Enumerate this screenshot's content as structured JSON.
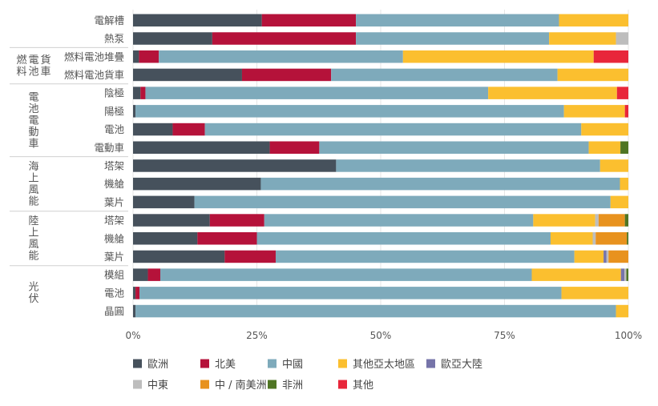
{
  "chart_data": {
    "type": "bar",
    "orientation": "horizontal",
    "stacked": true,
    "percent": true,
    "xlim": [
      0,
      100
    ],
    "xticks": [
      "0%",
      "25%",
      "50%",
      "75%",
      "100%"
    ],
    "grid": true,
    "legend_position": "bottom",
    "series": [
      {
        "name": "歐洲",
        "color": "#46515c"
      },
      {
        "name": "北美",
        "color": "#b5123a"
      },
      {
        "name": "中國",
        "color": "#7eaabb"
      },
      {
        "name": "其他亞太地區",
        "color": "#fbbf2f"
      },
      {
        "name": "歐亞大陸",
        "color": "#7674a9"
      },
      {
        "name": "中東",
        "color": "#bdbdbd"
      },
      {
        "name": "中 / 南美洲",
        "color": "#e8921e"
      },
      {
        "name": "非洲",
        "color": "#4f7523"
      },
      {
        "name": "其他",
        "color": "#e8263a"
      }
    ],
    "groups": [
      {
        "label": "",
        "start": 0,
        "end": 1
      },
      {
        "label": "燃料電池貨車",
        "start": 2,
        "end": 3
      },
      {
        "label": "電池電動車",
        "start": 4,
        "end": 7
      },
      {
        "label": "海上風能",
        "start": 8,
        "end": 10
      },
      {
        "label": "陸上風能",
        "start": 11,
        "end": 13
      },
      {
        "label": "光伏",
        "start": 14,
        "end": 16
      }
    ],
    "categories": [
      "電解槽",
      "熱泵",
      "燃料電池堆疊",
      "燃料電池貨車",
      "陰極",
      "陽極",
      "電池",
      "電動車",
      "塔架",
      "機艙",
      "葉片",
      "塔架",
      "機艙",
      "葉片",
      "模組",
      "電池",
      "晶圓"
    ],
    "rows": [
      [
        26,
        19,
        41,
        14,
        0,
        0,
        0,
        0,
        0
      ],
      [
        16,
        29,
        39,
        13.5,
        0,
        2.5,
        0,
        0,
        0
      ],
      [
        1.2,
        4,
        49.3,
        38.5,
        0,
        0,
        0,
        0,
        7
      ],
      [
        22,
        18,
        45.7,
        14.3,
        0,
        0,
        0,
        0,
        0
      ],
      [
        1.5,
        1,
        69.2,
        26,
        0,
        0,
        0,
        0,
        2.3
      ],
      [
        0.5,
        0,
        86.5,
        12.3,
        0,
        0,
        0,
        0,
        0.7
      ],
      [
        8,
        6.5,
        76,
        9.5,
        0,
        0,
        0,
        0,
        0
      ],
      [
        27.6,
        10,
        54.4,
        6.4,
        0,
        0,
        0,
        1.6,
        0
      ],
      [
        41,
        0,
        53.3,
        5.7,
        0,
        0,
        0,
        0,
        0
      ],
      [
        25.8,
        0,
        72.5,
        1.7,
        0,
        0,
        0,
        0,
        0
      ],
      [
        12.4,
        0,
        84,
        3.6,
        0,
        0,
        0,
        0,
        0
      ],
      [
        15.5,
        11,
        54.3,
        12.5,
        0,
        0.7,
        5.3,
        0.7,
        0
      ],
      [
        13,
        12,
        59.3,
        8.5,
        0,
        0.6,
        6.3,
        0.3,
        0
      ],
      [
        18.5,
        10.3,
        60.3,
        5.9,
        0.6,
        0.4,
        4,
        0,
        0
      ],
      [
        3,
        2.5,
        75,
        18,
        0.7,
        0.4,
        0,
        0.4,
        0
      ],
      [
        0.5,
        0.8,
        85.2,
        13.5,
        0,
        0,
        0,
        0,
        0
      ],
      [
        0.5,
        0,
        97,
        2.5,
        0,
        0,
        0,
        0,
        0
      ]
    ]
  }
}
